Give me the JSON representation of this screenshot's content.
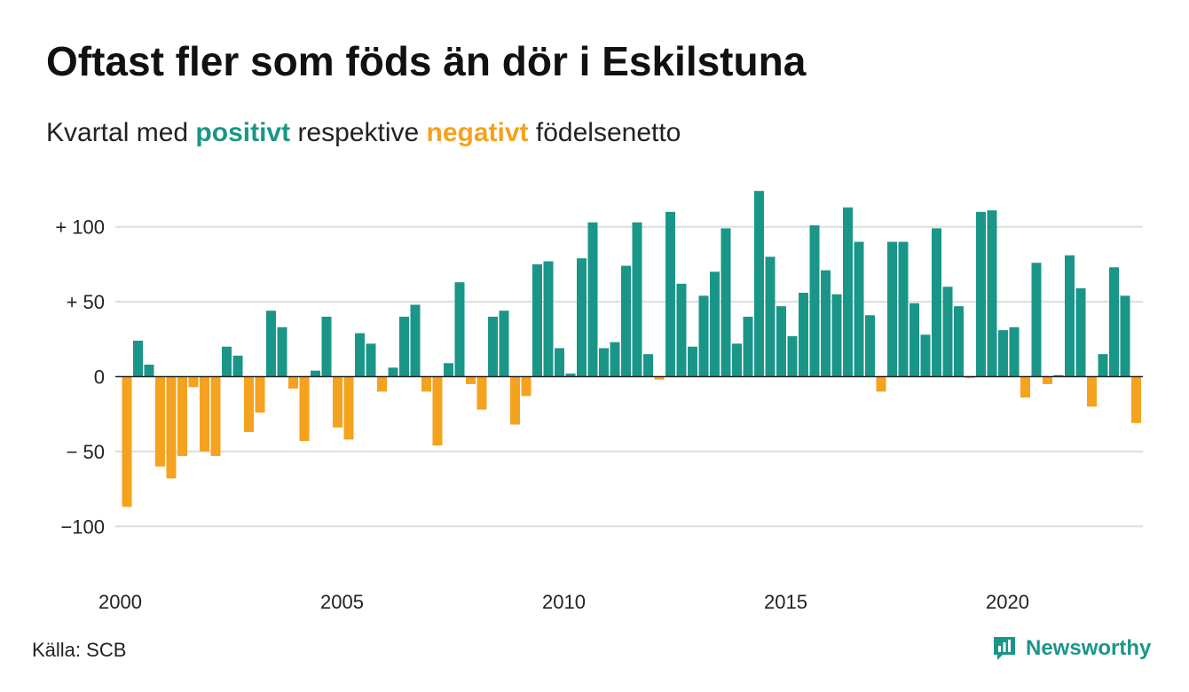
{
  "header": {
    "title": "Oftast fler som föds än dör i Eskilstuna",
    "subtitle_pre": "Kvartal med",
    "subtitle_pos": "positivt",
    "subtitle_mid": "respektive",
    "subtitle_neg": "negativt",
    "subtitle_post": "födelsenetto"
  },
  "footer": {
    "source": "Källa: SCB",
    "brand": "Newsworthy"
  },
  "colors": {
    "positive": "#1a9688",
    "negative": "#f5a21e",
    "grid": "#dddddd",
    "zero_line": "#222222"
  },
  "chart_data": {
    "type": "bar",
    "x_start": "2000Q1",
    "xticks": [
      "2000",
      "2005",
      "2010",
      "2015",
      "2020"
    ],
    "yticks": [
      100,
      50,
      0,
      -50,
      -100
    ],
    "ytick_labels": [
      "+ 100",
      "+  50",
      "0",
      "− 50",
      "−100"
    ],
    "ylim": [
      -130,
      130
    ],
    "grid": true,
    "values": [
      -87,
      24,
      8,
      -60,
      -68,
      -53,
      -7,
      -50,
      -53,
      20,
      14,
      -37,
      -24,
      44,
      33,
      -8,
      -43,
      4,
      40,
      -34,
      -42,
      29,
      22,
      -10,
      6,
      40,
      48,
      -10,
      -46,
      9,
      63,
      -5,
      -22,
      40,
      44,
      -32,
      -13,
      75,
      77,
      19,
      2,
      79,
      103,
      19,
      23,
      74,
      103,
      15,
      -2,
      110,
      62,
      20,
      54,
      70,
      99,
      22,
      40,
      124,
      80,
      47,
      27,
      56,
      101,
      71,
      55,
      113,
      90,
      41,
      -10,
      90,
      90,
      49,
      28,
      99,
      60,
      47,
      -1,
      110,
      111,
      31,
      33,
      -14,
      76,
      -5,
      1,
      81,
      59,
      -20,
      15,
      73,
      54,
      -31
    ]
  }
}
